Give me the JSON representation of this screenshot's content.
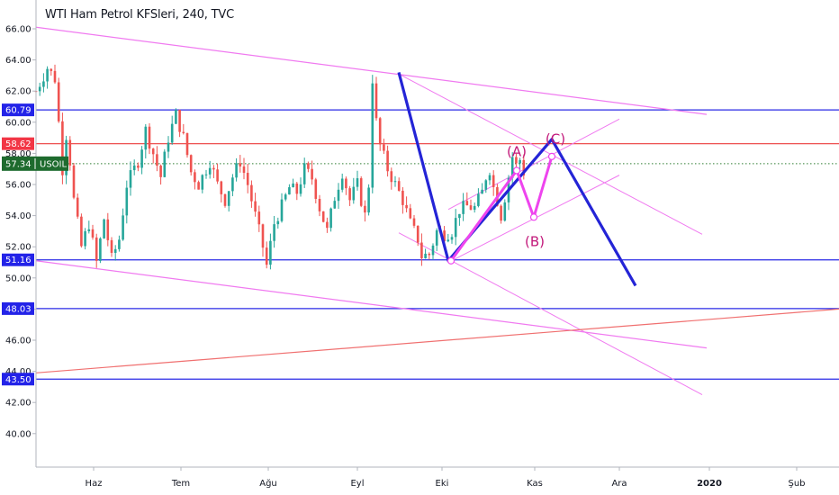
{
  "header": {
    "title": "WTI Ham Petrol KFSleri, 240, TVC"
  },
  "chart_data": {
    "type": "candlestick",
    "title": "WTI Ham Petrol KFSleri, 240, TVC",
    "symbol": "USOIL",
    "ylim": [
      38.0,
      67.5
    ],
    "y_ticks": [
      "66.00",
      "64.00",
      "62.00",
      "60.00",
      "58.00",
      "56.00",
      "54.00",
      "52.00",
      "50.00",
      "48.00",
      "46.00",
      "44.00",
      "42.00",
      "40.00"
    ],
    "x_ticks": [
      "Haz",
      "Tem",
      "Ağu",
      "Eyl",
      "Eki",
      "Kas",
      "Ara",
      "2020",
      "Şub"
    ],
    "x_ticks_bold": [
      "2020"
    ],
    "price_path": [
      [
        0,
        62.0
      ],
      [
        3,
        63.5
      ],
      [
        5,
        62.8
      ],
      [
        6,
        60.0
      ],
      [
        7,
        57.0
      ],
      [
        8,
        59.2
      ],
      [
        9,
        57.5
      ],
      [
        10,
        55.0
      ],
      [
        12,
        52.0
      ],
      [
        14,
        53.5
      ],
      [
        16,
        51.0
      ],
      [
        18,
        53.8
      ],
      [
        20,
        51.2
      ],
      [
        22,
        52.5
      ],
      [
        24,
        56.0
      ],
      [
        27,
        57.5
      ],
      [
        29,
        59.5
      ],
      [
        31,
        58.0
      ],
      [
        33,
        56.5
      ],
      [
        35,
        59.0
      ],
      [
        37,
        60.5
      ],
      [
        39,
        59.0
      ],
      [
        41,
        56.8
      ],
      [
        43,
        56.0
      ],
      [
        46,
        57.5
      ],
      [
        48,
        56.0
      ],
      [
        50,
        55.0
      ],
      [
        52,
        56.5
      ],
      [
        54,
        57.5
      ],
      [
        56,
        56.0
      ],
      [
        58,
        54.0
      ],
      [
        60,
        52.0
      ],
      [
        61,
        50.8
      ],
      [
        63,
        53.5
      ],
      [
        65,
        54.6
      ],
      [
        67,
        55.8
      ],
      [
        69,
        55.5
      ],
      [
        71,
        57.0
      ],
      [
        73,
        56.4
      ],
      [
        75,
        54.5
      ],
      [
        77,
        53.0
      ],
      [
        79,
        55.2
      ],
      [
        81,
        56.8
      ],
      [
        83,
        55.0
      ],
      [
        85,
        56.0
      ],
      [
        87,
        54.0
      ],
      [
        88,
        56.0
      ],
      [
        89,
        62.8
      ],
      [
        90,
        60.0
      ],
      [
        91,
        58.5
      ],
      [
        93,
        57.0
      ],
      [
        95,
        56.0
      ],
      [
        97,
        55.0
      ],
      [
        99,
        53.5
      ],
      [
        101,
        52.5
      ],
      [
        102,
        51.4
      ],
      [
        104,
        51.5
      ],
      [
        106,
        53.0
      ],
      [
        108,
        52.8
      ],
      [
        110,
        53.0
      ],
      [
        112,
        54.4
      ],
      [
        114,
        54.6
      ],
      [
        116,
        54.5
      ],
      [
        118,
        55.5
      ],
      [
        119,
        56.5
      ],
      [
        120,
        57.0
      ],
      [
        121,
        55.8
      ],
      [
        122,
        55.0
      ],
      [
        123,
        54.0
      ],
      [
        124,
        55.2
      ],
      [
        125,
        56.5
      ],
      [
        126,
        57.8
      ],
      [
        127,
        57.2
      ],
      [
        128,
        57.6
      ],
      [
        129,
        56.8
      ]
    ],
    "x_domain": [
      0,
      189
    ],
    "horizontal_levels": [
      {
        "label": "60.79",
        "value": 60.79,
        "color": "#2a2ae6",
        "tag_color": "#2323e8"
      },
      {
        "label": "58.62",
        "value": 58.62,
        "color": "#ec3b3b",
        "tag_color": "#f23645"
      },
      {
        "label": "51.16",
        "value": 51.16,
        "color": "#2a2ae6",
        "tag_color": "#2323e8"
      },
      {
        "label": "48.03",
        "value": 48.03,
        "color": "#2a2ae6",
        "tag_color": "#2323e8"
      },
      {
        "label": "43.50",
        "value": 43.5,
        "color": "#2a2ae6",
        "tag_color": "#2323e8"
      }
    ],
    "last_price": {
      "label": "57.34",
      "symbol": "USOIL",
      "value": 57.34,
      "color": "#1e6b2e"
    },
    "wave_labels": [
      "(A)",
      "(B)",
      "(C)"
    ],
    "colors": {
      "up": "#26a69a",
      "down": "#ef5350",
      "blue_line": "#2424d6",
      "magenta": "#ee44ee",
      "pink_trend": "#f07af0",
      "red_trend": "#f07070",
      "wave_label": "#c2187a"
    },
    "grid": false
  }
}
